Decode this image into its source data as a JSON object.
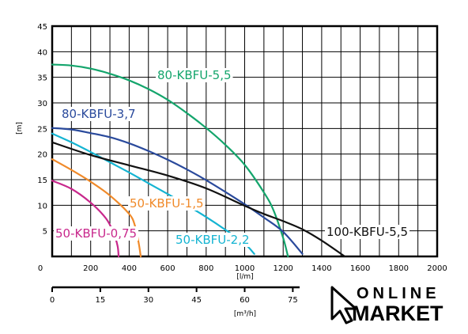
{
  "chart_data": {
    "type": "line",
    "ylabel": "[m]",
    "xlabel": "[l/m]",
    "ylim": [
      0,
      45
    ],
    "xlim": [
      0,
      2000
    ],
    "y_ticks": [
      "5",
      "10",
      "15",
      "20",
      "25",
      "30",
      "35",
      "40",
      "45"
    ],
    "y_zero": "0",
    "x_ticks": [
      "200",
      "400",
      "600",
      "800",
      "1000",
      "1200",
      "1400",
      "1600",
      "1800",
      "2000"
    ],
    "secondary_axis": {
      "label": "[m³/h]",
      "ticks": [
        "0",
        "15",
        "30",
        "45",
        "60",
        "75"
      ]
    },
    "grid": true,
    "series": [
      {
        "name": "80-KBFU-5,5",
        "color": "#14a56c",
        "points": [
          [
            0,
            37.5
          ],
          [
            100,
            37.3
          ],
          [
            200,
            36.7
          ],
          [
            300,
            35.7
          ],
          [
            400,
            34.4
          ],
          [
            500,
            32.7
          ],
          [
            600,
            30.6
          ],
          [
            700,
            28.0
          ],
          [
            800,
            25.1
          ],
          [
            900,
            21.8
          ],
          [
            1000,
            17.9
          ],
          [
            1100,
            12.5
          ],
          [
            1150,
            9.0
          ],
          [
            1200,
            3.6
          ],
          [
            1225,
            0
          ]
        ]
      },
      {
        "name": "80-KBFU-3,7",
        "color": "#2a4a9c",
        "points": [
          [
            0,
            25.1
          ],
          [
            100,
            24.8
          ],
          [
            200,
            24.1
          ],
          [
            300,
            23.3
          ],
          [
            400,
            22.1
          ],
          [
            500,
            20.6
          ],
          [
            600,
            18.9
          ],
          [
            700,
            17.0
          ],
          [
            800,
            14.9
          ],
          [
            900,
            12.6
          ],
          [
            1000,
            10.2
          ],
          [
            1100,
            7.6
          ],
          [
            1200,
            4.8
          ],
          [
            1300,
            0.5
          ]
        ]
      },
      {
        "name": "50-KBFU-2,2",
        "color": "#14b4d2",
        "points": [
          [
            0,
            24
          ],
          [
            100,
            22.3
          ],
          [
            200,
            20.4
          ],
          [
            300,
            18.4
          ],
          [
            400,
            16.4
          ],
          [
            500,
            14.3
          ],
          [
            600,
            12.2
          ],
          [
            700,
            10.0
          ],
          [
            800,
            7.7
          ],
          [
            900,
            5.2
          ],
          [
            1000,
            2.5
          ],
          [
            1050,
            0.5
          ]
        ]
      },
      {
        "name": "50-KBFU-1,5",
        "color": "#f08a2a",
        "points": [
          [
            0,
            19
          ],
          [
            100,
            16.9
          ],
          [
            200,
            14.6
          ],
          [
            300,
            11.9
          ],
          [
            400,
            8.3
          ],
          [
            430,
            6.0
          ],
          [
            450,
            2.5
          ],
          [
            460,
            0
          ]
        ]
      },
      {
        "name": "50-KBFU-0,75",
        "color": "#c8288c",
        "points": [
          [
            0,
            14.8
          ],
          [
            100,
            13.2
          ],
          [
            200,
            10.5
          ],
          [
            280,
            7.4
          ],
          [
            320,
            4.5
          ],
          [
            340,
            2.0
          ],
          [
            345,
            0
          ]
        ]
      },
      {
        "name": "100-KBFU-5,5",
        "color": "#111111",
        "points": [
          [
            0,
            22.3
          ],
          [
            200,
            19.8
          ],
          [
            400,
            17.8
          ],
          [
            600,
            15.8
          ],
          [
            800,
            13.3
          ],
          [
            1000,
            9.9
          ],
          [
            1100,
            8.3
          ],
          [
            1200,
            6.9
          ],
          [
            1300,
            5.3
          ],
          [
            1400,
            3.1
          ],
          [
            1520,
            0
          ]
        ]
      }
    ]
  },
  "brand": {
    "line1": "ONLINE",
    "line2": "MARKET",
    "icon": "cursor-arrow-icon"
  }
}
